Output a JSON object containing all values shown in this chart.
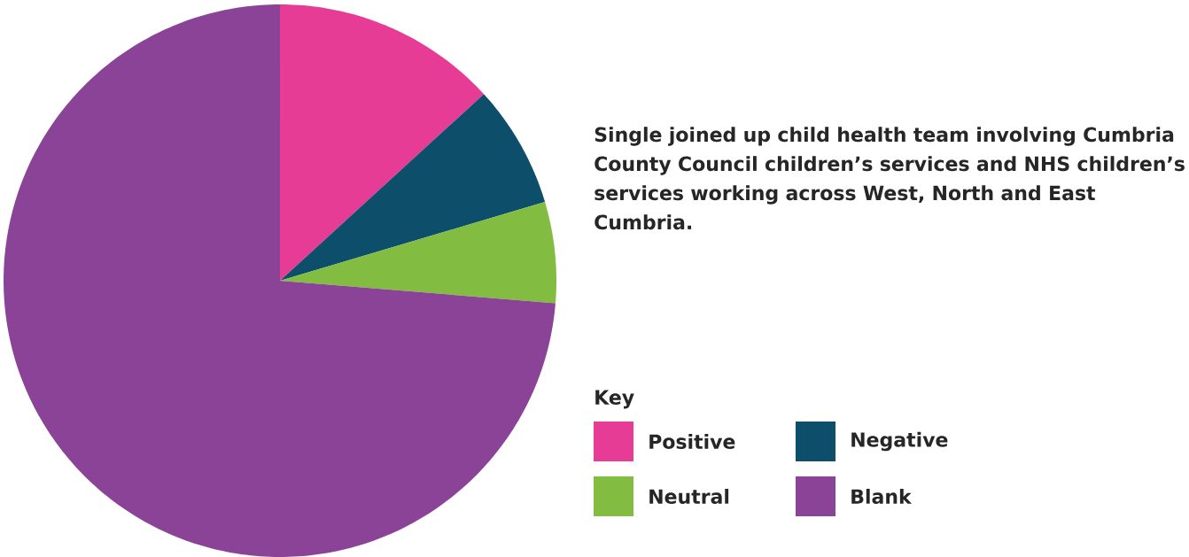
{
  "chart_data": {
    "type": "pie",
    "title": "Single joined up child health team involving Cumbria County Council children’s services and NHS children’s services working across West, North and East Cumbria.",
    "legend_title": "Key",
    "legend": "right",
    "categories": [
      "Positive",
      "Negative",
      "Neutral",
      "Blank"
    ],
    "values": [
      13.2,
      7.2,
      5.9,
      73.7
    ],
    "colors": [
      "#e63c96",
      "#0d4e6b",
      "#82bd41",
      "#8a4397"
    ]
  }
}
